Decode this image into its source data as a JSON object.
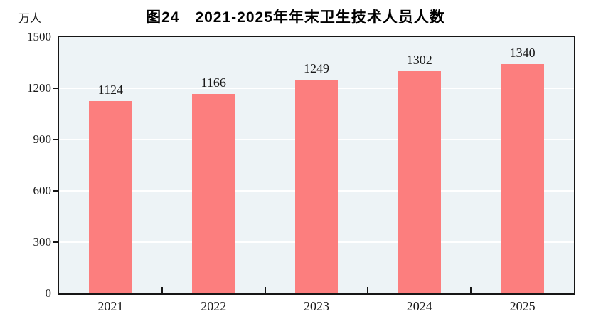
{
  "chart_data": {
    "type": "bar",
    "title": "图24　2021-2025年年末卫生技术人员人数",
    "unit_label": "万人",
    "categories": [
      "2021",
      "2022",
      "2023",
      "2024",
      "2025"
    ],
    "values": [
      1124,
      1166,
      1249,
      1302,
      1340
    ],
    "ylim": [
      0,
      1500
    ],
    "yticks": [
      0,
      300,
      600,
      900,
      1200,
      1500
    ],
    "grid": "horizontal-white-lines-at-yticks",
    "legend": "none",
    "bar_color": "#FC7E7E",
    "plot_background": "#EDF3F6",
    "grid_color": "#FFFFFF",
    "axis_color": "#161616",
    "text_color": "#1A1A1A"
  }
}
